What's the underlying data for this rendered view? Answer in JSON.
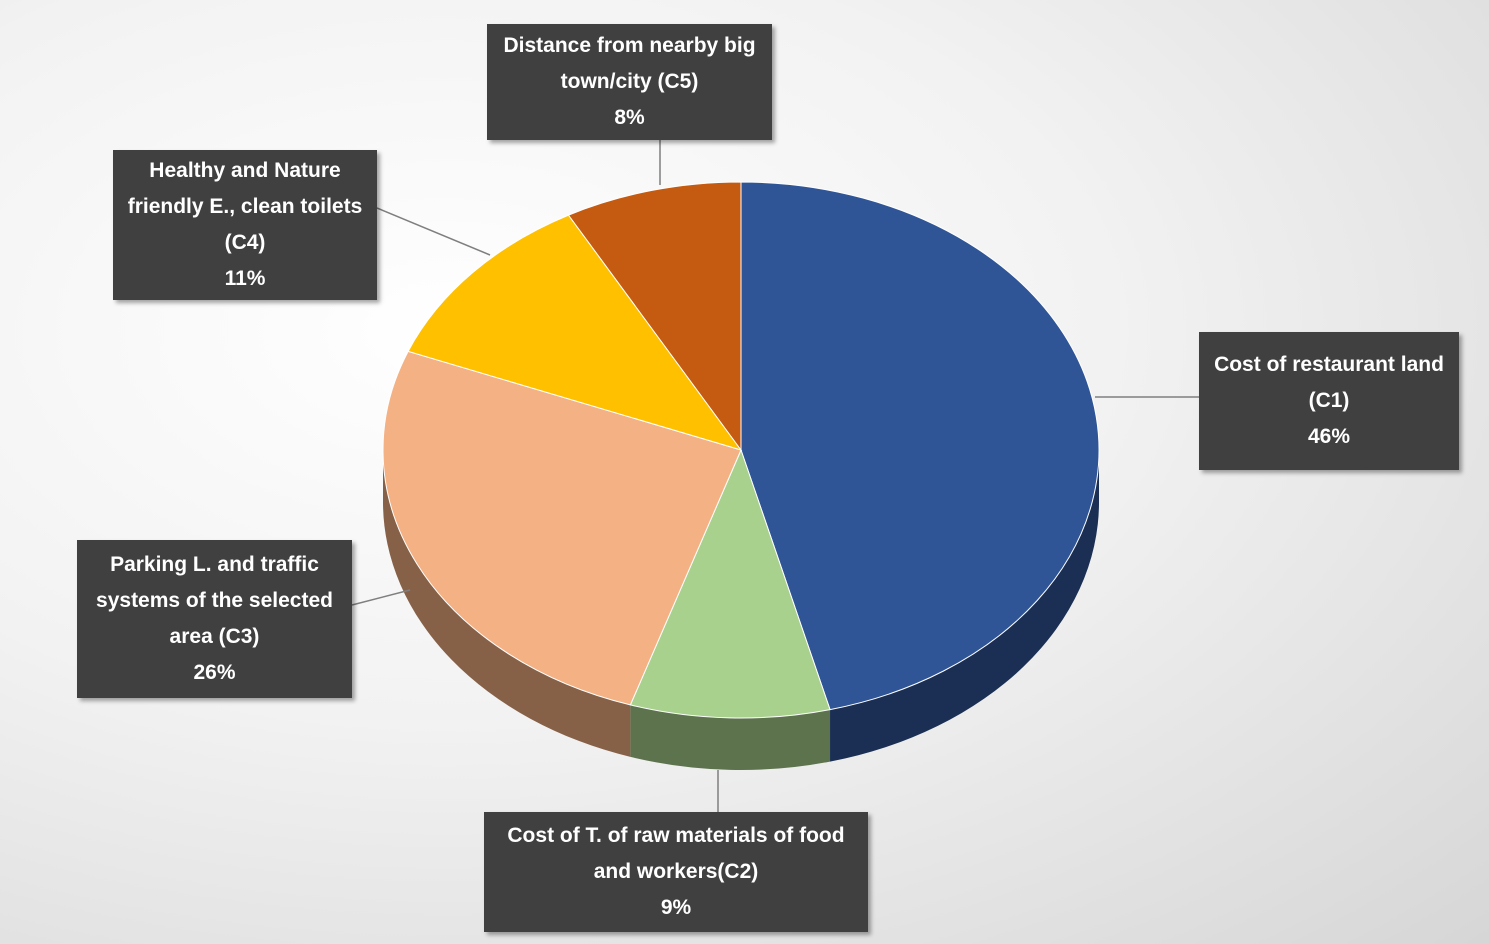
{
  "chart_data": {
    "type": "pie",
    "categories": [
      "Cost of restaurant land (C1)",
      "Cost of T. of raw materials of food and workers(C2)",
      "Parking L. and traffic systems of the selected area (C3)",
      "Healthy and Nature friendly E., clean toilets (C4)",
      "Distance from nearby big town/city (C5)"
    ],
    "values": [
      46,
      9,
      26,
      11,
      8
    ],
    "value_labels": [
      "46%",
      "9%",
      "26%",
      "11%",
      "8%"
    ],
    "colors": [
      "#2f5597",
      "#a9d18e",
      "#f4b183",
      "#ffc000",
      "#c55a11"
    ]
  }
}
